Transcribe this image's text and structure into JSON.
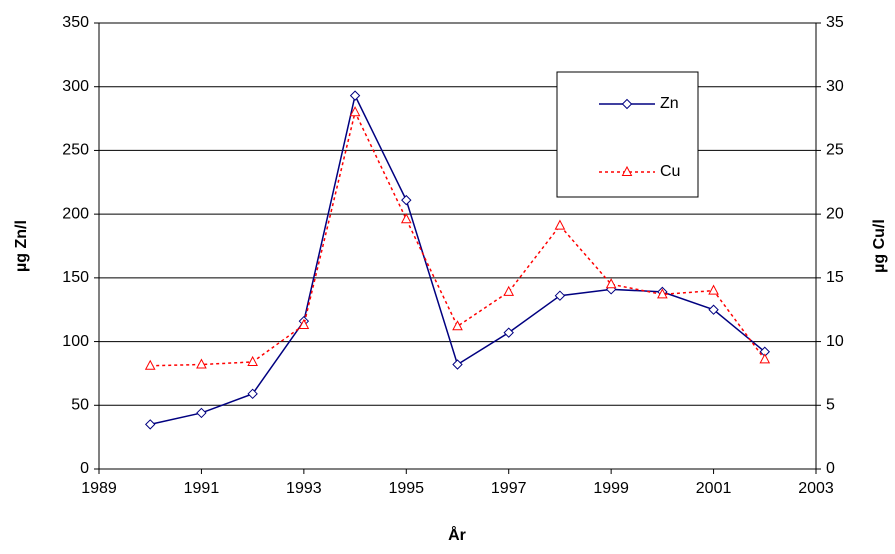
{
  "chart_data": {
    "type": "line",
    "x": [
      1990,
      1991,
      1992,
      1993,
      1994,
      1995,
      1996,
      1997,
      1998,
      1999,
      2000,
      2001,
      2002
    ],
    "series": [
      {
        "name": "Zn",
        "color": "#000080",
        "marker": "diamond",
        "dash": "solid",
        "values": [
          35,
          44,
          59,
          116,
          293,
          211,
          82,
          107,
          136,
          141,
          139,
          125,
          92
        ]
      },
      {
        "name": "Cu",
        "color": "#ff0000",
        "marker": "triangle",
        "dash": "dotted",
        "axis": "y2",
        "values": [
          8.1,
          8.2,
          8.4,
          11.3,
          28.0,
          19.6,
          11.2,
          13.9,
          19.1,
          14.5,
          13.7,
          14.0,
          8.6
        ]
      }
    ],
    "xlabel": "År",
    "ylabel": "µg Zn/l",
    "y2label": "µg Cu/l",
    "xlim": [
      1989,
      2003
    ],
    "xticks": [
      1989,
      1991,
      1993,
      1995,
      1997,
      1999,
      2001,
      2003
    ],
    "ylim": [
      0,
      350
    ],
    "yticks": [
      0,
      50,
      100,
      150,
      200,
      250,
      300,
      350
    ],
    "y2lim": [
      0,
      35
    ],
    "y2ticks": [
      0,
      5,
      10,
      15,
      20,
      25,
      30,
      35
    ],
    "grid": true,
    "legend": "upper right"
  }
}
